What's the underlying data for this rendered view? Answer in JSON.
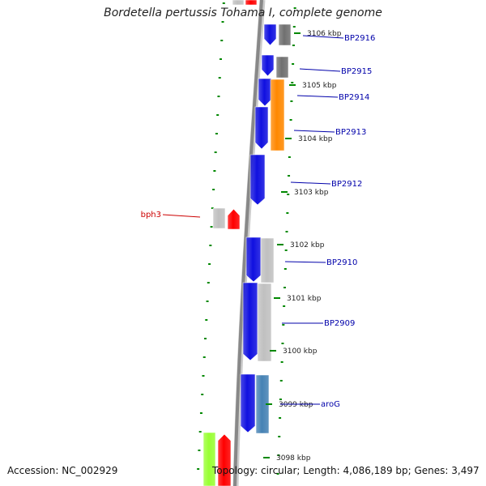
{
  "title": "Bordetella pertussis Tohama I, complete genome",
  "footer": {
    "accession": "Accession: NC_002929",
    "summary": "Topology: circular; Length: 4,086,189 bp; Genes: 3,497"
  },
  "colors": {
    "gene_blue": "#1010e0",
    "gene_red": "#ff0000",
    "gene_orange": "#ff8800",
    "gene_gray": "#c0c0c0",
    "gene_darkgray": "#707070",
    "gene_steelblue": "#4682b4",
    "gene_lime": "#99ff33",
    "label_blue": "#0000aa",
    "label_red": "#cc0000",
    "tick_green": "#008800",
    "backbone": "#888888"
  },
  "scale": {
    "ticks": [
      "3106 kbp",
      "3105 kbp",
      "3104 kbp",
      "3103 kbp",
      "3102 kbp",
      "3101 kbp",
      "3100 kbp",
      "3099 kbp",
      "3098 kbp"
    ]
  },
  "gene_labels": [
    {
      "name": "BP2916",
      "color": "label_blue"
    },
    {
      "name": "BP2915",
      "color": "label_blue"
    },
    {
      "name": "BP2914",
      "color": "label_blue"
    },
    {
      "name": "BP2913",
      "color": "label_blue"
    },
    {
      "name": "BP2912",
      "color": "label_blue"
    },
    {
      "name": "bph3",
      "color": "label_red"
    },
    {
      "name": "BP2910",
      "color": "label_blue"
    },
    {
      "name": "BP2909",
      "color": "label_blue"
    },
    {
      "name": "aroG",
      "color": "label_blue"
    }
  ]
}
